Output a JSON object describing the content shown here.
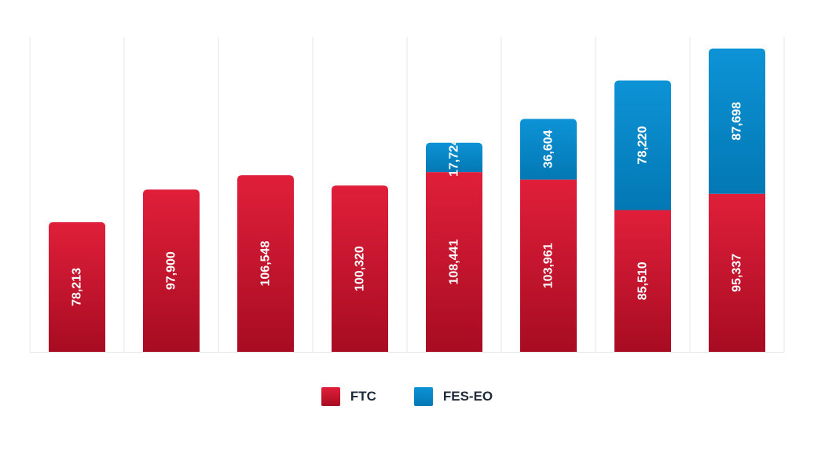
{
  "colors": {
    "ftc_top": "#e01f3a",
    "ftc_bottom": "#a70c22",
    "fes_top": "#0d93d6",
    "fes_bottom": "#0378b4",
    "grid": "#e6e6e6",
    "label": "#ffffff",
    "legend_text": "#1e2a3b"
  },
  "chart_data": {
    "type": "bar",
    "stacked": true,
    "title": "",
    "xlabel": "",
    "ylabel": "",
    "ylim": [
      0,
      190000
    ],
    "grid": "vertical separators only",
    "legend_position": "bottom-center",
    "categories": [
      "",
      "",
      "",
      "",
      "",
      "",
      "",
      ""
    ],
    "series": [
      {
        "name": "FTC",
        "values": [
          78213,
          97900,
          106548,
          100320,
          108441,
          103961,
          85510,
          95337
        ],
        "labels": [
          "78,213",
          "97,900",
          "106,548",
          "100,320",
          "108,441",
          "103,961",
          "85,510",
          "95,337"
        ]
      },
      {
        "name": "FES-EO",
        "values": [
          0,
          0,
          0,
          0,
          17724,
          36604,
          78220,
          87698
        ],
        "labels": [
          "",
          "",
          "",
          "",
          "17,724",
          "36,604",
          "78,220",
          "87,698"
        ]
      }
    ]
  },
  "legend": {
    "ftc_label": "FTC",
    "fes_label": "FES-EO"
  }
}
